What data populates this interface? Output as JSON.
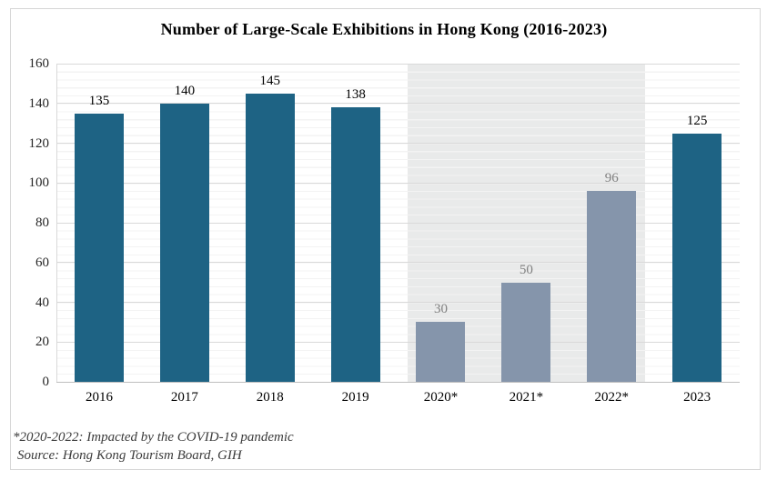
{
  "chart_data": {
    "type": "bar",
    "title": "Number of Large-Scale Exhibitions in Hong Kong (2016-2023)",
    "categories": [
      "2016",
      "2017",
      "2018",
      "2019",
      "2020*",
      "2021*",
      "2022*",
      "2023"
    ],
    "values": [
      135,
      140,
      145,
      138,
      30,
      50,
      96,
      125
    ],
    "pandemic_years": [
      false,
      false,
      false,
      false,
      true,
      true,
      true,
      false
    ],
    "xlabel": "",
    "ylabel": "",
    "ylim": [
      0,
      160
    ],
    "yticks": [
      0,
      20,
      40,
      60,
      80,
      100,
      120,
      140,
      160
    ],
    "minor_grid_unit": 4,
    "grid": "horizontal major and minor gridlines on",
    "legend": "none",
    "annotations": {
      "highlight_band": "shaded background behind 2020*-2022* bars",
      "data_labels": "value shown above each bar"
    }
  },
  "footnote": {
    "note": "*2020-2022: Impacted by the COVID-19 pandemic",
    "source": "Source: Hong Kong Tourism Board, GIH"
  },
  "colors": {
    "bar_normal": "#1e6384",
    "bar_pandemic": "#8595ab",
    "label_normal": "#000000",
    "label_pandemic": "#7f7f7f",
    "highlight_band": "#e9eaea",
    "gridline_major": "#d9d9d9",
    "gridline_minor": "#f3f3f3"
  }
}
